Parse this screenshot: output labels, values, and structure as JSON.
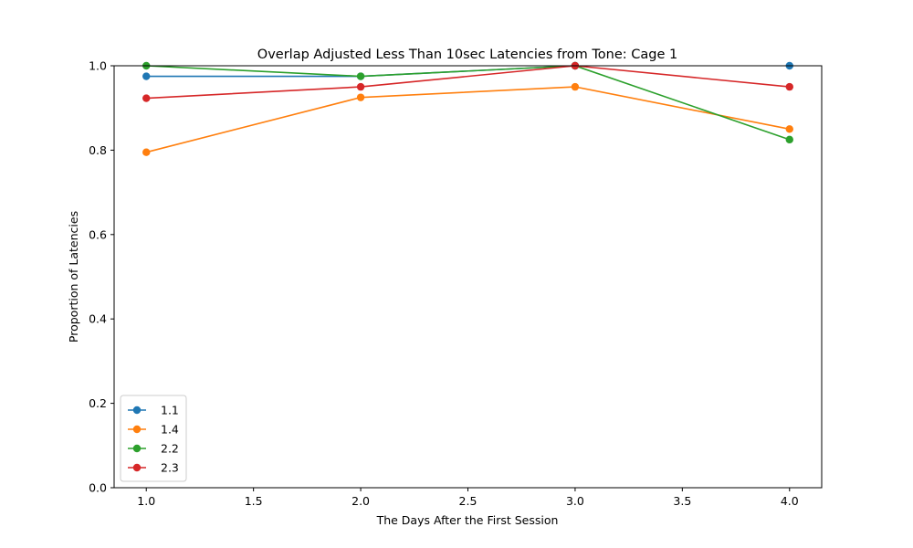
{
  "chart_data": {
    "type": "line",
    "title": "Overlap Adjusted Less Than 10sec Latencies from Tone: Cage 1",
    "xlabel": "The Days After the First Session",
    "ylabel": "Proportion of Latencies",
    "xlim": [
      0.85,
      4.15
    ],
    "ylim": [
      0.0,
      1.0
    ],
    "x_ticks": [
      1.0,
      1.5,
      2.0,
      2.5,
      3.0,
      3.5,
      4.0
    ],
    "x_tick_labels": [
      "1.0",
      "1.5",
      "2.0",
      "2.5",
      "3.0",
      "3.5",
      "4.0"
    ],
    "y_ticks": [
      0.0,
      0.2,
      0.4,
      0.6,
      0.8,
      1.0
    ],
    "y_tick_labels": [
      "0.0",
      "0.2",
      "0.4",
      "0.6",
      "0.8",
      "1.0"
    ],
    "grid": false,
    "legend_position": "lower-left",
    "series": [
      {
        "name": "1.1",
        "color": "#1f77b4",
        "segments": [
          [
            [
              1.0,
              0.975
            ],
            [
              2.0,
              0.975
            ],
            [
              3.0,
              1.0
            ]
          ],
          [
            [
              4.0,
              1.0
            ]
          ]
        ]
      },
      {
        "name": "1.4",
        "color": "#ff7f0e",
        "segments": [
          [
            [
              1.0,
              0.795
            ],
            [
              2.0,
              0.925
            ],
            [
              3.0,
              0.95
            ],
            [
              4.0,
              0.85
            ]
          ]
        ]
      },
      {
        "name": "2.2",
        "color": "#2ca02c",
        "segments": [
          [
            [
              1.0,
              1.0
            ],
            [
              2.0,
              0.975
            ],
            [
              3.0,
              1.0
            ],
            [
              4.0,
              0.825
            ]
          ]
        ]
      },
      {
        "name": "2.3",
        "color": "#d62728",
        "segments": [
          [
            [
              1.0,
              0.923
            ],
            [
              2.0,
              0.95
            ],
            [
              3.0,
              1.0
            ],
            [
              4.0,
              0.95
            ]
          ]
        ]
      }
    ]
  }
}
